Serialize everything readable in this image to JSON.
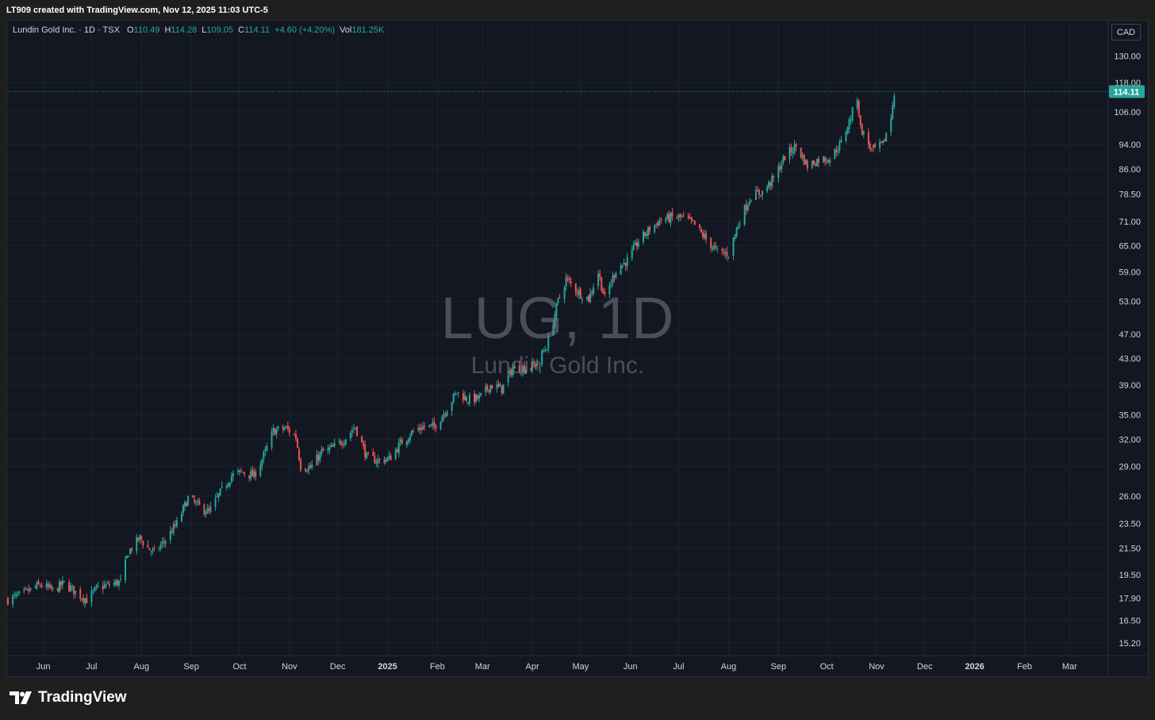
{
  "header": {
    "credit": "LT909 created with TradingView.com, Nov 12, 2025 11:03 UTC-5"
  },
  "legend": {
    "symbol": "Lundin Gold Inc. · 1D · TSX",
    "o_label": "O",
    "o_value": "110.49",
    "h_label": "H",
    "h_value": "114.28",
    "l_label": "L",
    "l_value": "109.05",
    "c_label": "C",
    "c_value": "114.11",
    "change": "+4.60 (+4.20%)",
    "vol_label": "Vol",
    "vol_value": "181.25K"
  },
  "currency_button": "CAD",
  "watermark": {
    "ticker": "LUG, 1D",
    "name": "Lundin Gold Inc."
  },
  "brand": {
    "name": "TradingView"
  },
  "colors": {
    "up": "#26a69a",
    "down": "#ef5350",
    "background": "#131722",
    "grid": "#1e222d",
    "axis_text": "#d1d4dc"
  },
  "chart_data": {
    "type": "candlestick",
    "scale": "log",
    "last_price": 114.11,
    "last_price_label": "114.11",
    "y_ticks": [
      "130.00",
      "118.00",
      "106.00",
      "94.00",
      "86.00",
      "78.50",
      "71.00",
      "65.00",
      "59.00",
      "53.00",
      "47.00",
      "43.00",
      "39.00",
      "35.00",
      "32.00",
      "29.00",
      "26.00",
      "23.50",
      "21.50",
      "19.50",
      "17.90",
      "16.50",
      "15.20"
    ],
    "x_ticks": [
      {
        "date": "2024-06-01",
        "label": "Jun"
      },
      {
        "date": "2024-07-01",
        "label": "Jul"
      },
      {
        "date": "2024-08-01",
        "label": "Aug"
      },
      {
        "date": "2024-09-01",
        "label": "Sep"
      },
      {
        "date": "2024-10-01",
        "label": "Oct"
      },
      {
        "date": "2024-11-01",
        "label": "Nov"
      },
      {
        "date": "2024-12-01",
        "label": "Dec"
      },
      {
        "date": "2025-01-01",
        "label": "2025"
      },
      {
        "date": "2025-02-01",
        "label": "Feb"
      },
      {
        "date": "2025-03-01",
        "label": "Mar"
      },
      {
        "date": "2025-04-01",
        "label": "Apr"
      },
      {
        "date": "2025-05-01",
        "label": "May"
      },
      {
        "date": "2025-06-01",
        "label": "Jun"
      },
      {
        "date": "2025-07-01",
        "label": "Jul"
      },
      {
        "date": "2025-08-01",
        "label": "Aug"
      },
      {
        "date": "2025-09-01",
        "label": "Sep"
      },
      {
        "date": "2025-10-01",
        "label": "Oct"
      },
      {
        "date": "2025-11-01",
        "label": "Nov"
      },
      {
        "date": "2025-12-01",
        "label": "Dec"
      },
      {
        "date": "2026-01-01",
        "label": "2026"
      },
      {
        "date": "2026-02-01",
        "label": "Feb"
      },
      {
        "date": "2026-03-01",
        "label": "Mar"
      }
    ],
    "x_range": [
      "2024-05-10",
      "2026-03-25"
    ],
    "y_range": [
      14.5,
      140
    ],
    "close_series": [
      [
        "2024-05-10",
        17.8
      ],
      [
        "2024-05-20",
        18.2
      ],
      [
        "2024-05-30",
        18.8
      ],
      [
        "2024-06-07",
        18.4
      ],
      [
        "2024-06-14",
        18.9
      ],
      [
        "2024-06-21",
        18.3
      ],
      [
        "2024-06-28",
        17.8
      ],
      [
        "2024-07-05",
        18.6
      ],
      [
        "2024-07-12",
        18.8
      ],
      [
        "2024-07-19",
        19.0
      ],
      [
        "2024-07-24",
        21.2
      ],
      [
        "2024-07-31",
        22.3
      ],
      [
        "2024-08-05",
        21.5
      ],
      [
        "2024-08-09",
        21.1
      ],
      [
        "2024-08-15",
        22.0
      ],
      [
        "2024-08-23",
        23.5
      ],
      [
        "2024-08-30",
        25.8
      ],
      [
        "2024-09-06",
        25.0
      ],
      [
        "2024-09-12",
        24.5
      ],
      [
        "2024-09-19",
        26.3
      ],
      [
        "2024-09-26",
        28.0
      ],
      [
        "2024-10-03",
        28.4
      ],
      [
        "2024-10-10",
        28.0
      ],
      [
        "2024-10-17",
        30.5
      ],
      [
        "2024-10-22",
        33.0
      ],
      [
        "2024-10-30",
        33.3
      ],
      [
        "2024-11-05",
        32.3
      ],
      [
        "2024-11-08",
        29.0
      ],
      [
        "2024-11-14",
        28.8
      ],
      [
        "2024-11-21",
        30.5
      ],
      [
        "2024-11-28",
        31.0
      ],
      [
        "2024-12-05",
        32.0
      ],
      [
        "2024-12-12",
        33.5
      ],
      [
        "2024-12-19",
        30.0
      ],
      [
        "2024-12-26",
        29.6
      ],
      [
        "2025-01-02",
        29.8
      ],
      [
        "2025-01-09",
        31.5
      ],
      [
        "2025-01-16",
        32.8
      ],
      [
        "2025-01-23",
        33.5
      ],
      [
        "2025-01-30",
        33.5
      ],
      [
        "2025-02-06",
        35.5
      ],
      [
        "2025-02-13",
        38.0
      ],
      [
        "2025-02-20",
        37.0
      ],
      [
        "2025-02-27",
        37.2
      ],
      [
        "2025-03-06",
        39.0
      ],
      [
        "2025-03-13",
        38.5
      ],
      [
        "2025-03-20",
        41.5
      ],
      [
        "2025-03-27",
        41.5
      ],
      [
        "2025-04-03",
        42.0
      ],
      [
        "2025-04-10",
        45.0
      ],
      [
        "2025-04-17",
        53.0
      ],
      [
        "2025-04-22",
        57.5
      ],
      [
        "2025-04-29",
        55.0
      ],
      [
        "2025-05-06",
        53.5
      ],
      [
        "2025-05-12",
        59.0
      ],
      [
        "2025-05-16",
        53.5
      ],
      [
        "2025-05-23",
        59.5
      ],
      [
        "2025-05-30",
        61.5
      ],
      [
        "2025-06-06",
        66.0
      ],
      [
        "2025-06-13",
        69.0
      ],
      [
        "2025-06-20",
        71.5
      ],
      [
        "2025-06-27",
        72.0
      ],
      [
        "2025-07-04",
        72.0
      ],
      [
        "2025-07-11",
        70.0
      ],
      [
        "2025-07-18",
        66.5
      ],
      [
        "2025-07-25",
        63.5
      ],
      [
        "2025-08-01",
        63.0
      ],
      [
        "2025-08-08",
        71.5
      ],
      [
        "2025-08-15",
        78.0
      ],
      [
        "2025-08-22",
        79.0
      ],
      [
        "2025-08-29",
        83.0
      ],
      [
        "2025-09-05",
        90.0
      ],
      [
        "2025-09-12",
        93.5
      ],
      [
        "2025-09-19",
        87.0
      ],
      [
        "2025-09-26",
        89.0
      ],
      [
        "2025-10-03",
        89.5
      ],
      [
        "2025-10-10",
        94.5
      ],
      [
        "2025-10-16",
        104.0
      ],
      [
        "2025-10-20",
        112.0
      ],
      [
        "2025-10-22",
        100.0
      ],
      [
        "2025-10-29",
        92.0
      ],
      [
        "2025-11-05",
        94.0
      ],
      [
        "2025-11-10",
        104.0
      ],
      [
        "2025-11-12",
        114.1
      ]
    ]
  }
}
